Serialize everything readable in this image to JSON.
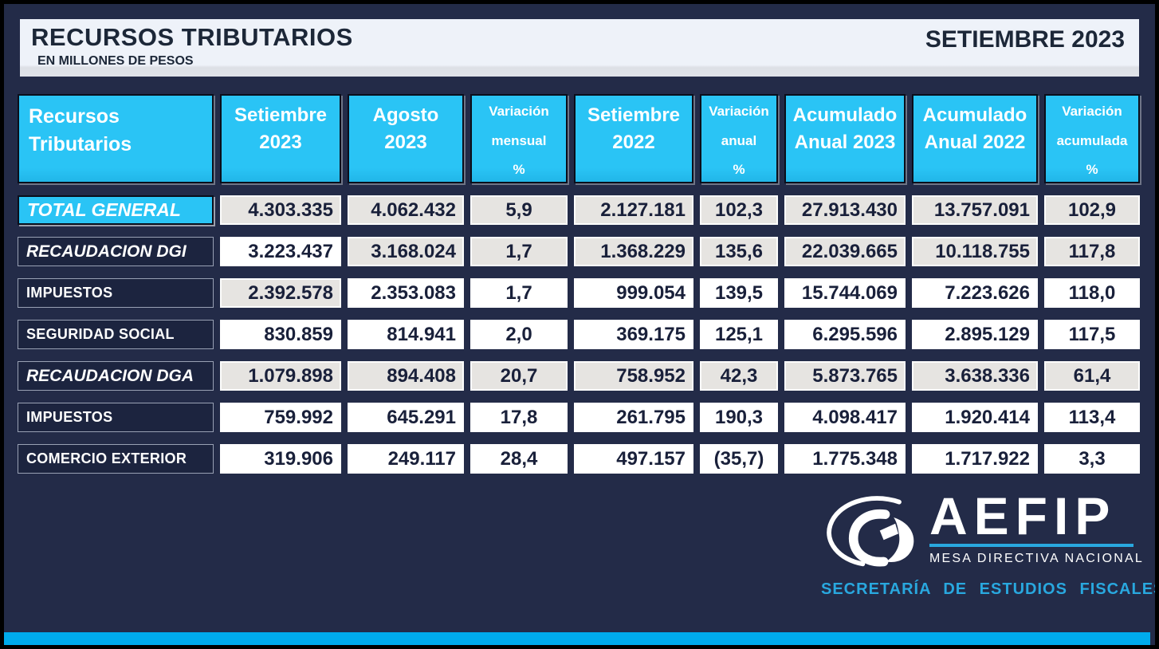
{
  "title": {
    "heading": "RECURSOS TRIBUTARIOS",
    "subheading": "EN MILLONES DE PESOS",
    "period": "SETIEMBRE 2023"
  },
  "colors": {
    "accent_cyan": "#2AC4F5",
    "stripe_cyan": "#00ABEC",
    "background_navy": "#232B48",
    "cell_gray": "#E6E4E1",
    "cell_white": "#FFFFFF",
    "text_dark": "#19203A",
    "secretaria_cyan": "#29A8DF"
  },
  "table": {
    "columns": [
      {
        "label": "Recursos\nTributarios",
        "size": "large"
      },
      {
        "label": "Setiembre\n2023",
        "size": "large"
      },
      {
        "label": "Agosto\n2023",
        "size": "large"
      },
      {
        "label": "Variación\nmensual\n%",
        "size": "small"
      },
      {
        "label": "Setiembre\n2022",
        "size": "large"
      },
      {
        "label": "Variación\nanual\n%",
        "size": "small"
      },
      {
        "label": "Acumulado\nAnual 2023",
        "size": "large"
      },
      {
        "label": "Acumulado\nAnual 2022",
        "size": "large"
      },
      {
        "label": "Variación\nacumulada\n%",
        "size": "small"
      }
    ],
    "rows": [
      {
        "label": "TOTAL GENERAL",
        "style": "total",
        "cells": [
          {
            "v": "4.303.335",
            "bg": "gray"
          },
          {
            "v": "4.062.432",
            "bg": "gray"
          },
          {
            "v": "5,9",
            "bg": "gray"
          },
          {
            "v": "2.127.181",
            "bg": "gray"
          },
          {
            "v": "102,3",
            "bg": "gray"
          },
          {
            "v": "27.913.430",
            "bg": "gray"
          },
          {
            "v": "13.757.091",
            "bg": "gray"
          },
          {
            "v": "102,9",
            "bg": "gray"
          }
        ]
      },
      {
        "label": "RECAUDACION DGI",
        "style": "sub",
        "cells": [
          {
            "v": "3.223.437",
            "bg": "white"
          },
          {
            "v": "3.168.024",
            "bg": "gray"
          },
          {
            "v": "1,7",
            "bg": "gray"
          },
          {
            "v": "1.368.229",
            "bg": "gray"
          },
          {
            "v": "135,6",
            "bg": "gray"
          },
          {
            "v": "22.039.665",
            "bg": "gray"
          },
          {
            "v": "10.118.755",
            "bg": "gray"
          },
          {
            "v": "117,8",
            "bg": "gray"
          }
        ]
      },
      {
        "label": "IMPUESTOS",
        "style": "plain",
        "cells": [
          {
            "v": "2.392.578",
            "bg": "gray"
          },
          {
            "v": "2.353.083",
            "bg": "white"
          },
          {
            "v": "1,7",
            "bg": "white"
          },
          {
            "v": "999.054",
            "bg": "white"
          },
          {
            "v": "139,5",
            "bg": "white"
          },
          {
            "v": "15.744.069",
            "bg": "white"
          },
          {
            "v": "7.223.626",
            "bg": "white"
          },
          {
            "v": "118,0",
            "bg": "white"
          }
        ]
      },
      {
        "label": "SEGURIDAD SOCIAL",
        "style": "plain",
        "cells": [
          {
            "v": "830.859",
            "bg": "white"
          },
          {
            "v": "814.941",
            "bg": "white"
          },
          {
            "v": "2,0",
            "bg": "white"
          },
          {
            "v": "369.175",
            "bg": "white"
          },
          {
            "v": "125,1",
            "bg": "white"
          },
          {
            "v": "6.295.596",
            "bg": "white"
          },
          {
            "v": "2.895.129",
            "bg": "white"
          },
          {
            "v": "117,5",
            "bg": "white"
          }
        ]
      },
      {
        "label": "RECAUDACION DGA",
        "style": "sub",
        "cells": [
          {
            "v": "1.079.898",
            "bg": "gray"
          },
          {
            "v": "894.408",
            "bg": "gray"
          },
          {
            "v": "20,7",
            "bg": "gray"
          },
          {
            "v": "758.952",
            "bg": "gray"
          },
          {
            "v": "42,3",
            "bg": "gray"
          },
          {
            "v": "5.873.765",
            "bg": "gray"
          },
          {
            "v": "3.638.336",
            "bg": "gray"
          },
          {
            "v": "61,4",
            "bg": "gray"
          }
        ]
      },
      {
        "label": "IMPUESTOS",
        "style": "plain",
        "cells": [
          {
            "v": "759.992",
            "bg": "white"
          },
          {
            "v": "645.291",
            "bg": "white"
          },
          {
            "v": "17,8",
            "bg": "white"
          },
          {
            "v": "261.795",
            "bg": "white"
          },
          {
            "v": "190,3",
            "bg": "white"
          },
          {
            "v": "4.098.417",
            "bg": "white"
          },
          {
            "v": "1.920.414",
            "bg": "white"
          },
          {
            "v": "113,4",
            "bg": "white"
          }
        ]
      },
      {
        "label": "COMERCIO EXTERIOR",
        "style": "plain",
        "cells": [
          {
            "v": "319.906",
            "bg": "white"
          },
          {
            "v": "249.117",
            "bg": "white"
          },
          {
            "v": "28,4",
            "bg": "white"
          },
          {
            "v": "497.157",
            "bg": "white"
          },
          {
            "v": "(35,7)",
            "bg": "white"
          },
          {
            "v": "1.775.348",
            "bg": "white"
          },
          {
            "v": "1.717.922",
            "bg": "white"
          },
          {
            "v": "3,3",
            "bg": "white"
          }
        ]
      }
    ]
  },
  "footer": {
    "org": "AEFIP",
    "board": "MESA DIRECTIVA NACIONAL",
    "secretariat": "SECRETARÍA  DE  ESTUDIOS  FISCALES",
    "logo_icon": "aefip-eye-logo"
  }
}
